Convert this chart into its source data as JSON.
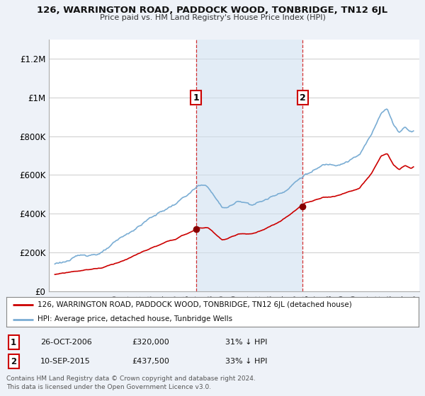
{
  "title": "126, WARRINGTON ROAD, PADDOCK WOOD, TONBRIDGE, TN12 6JL",
  "subtitle": "Price paid vs. HM Land Registry's House Price Index (HPI)",
  "hpi_color": "#7aadd4",
  "price_color": "#cc0000",
  "background_color": "#eef2f8",
  "plot_bg_color": "#ffffff",
  "ylim": [
    0,
    1300000
  ],
  "yticks": [
    0,
    200000,
    400000,
    600000,
    800000,
    1000000,
    1200000
  ],
  "ytick_labels": [
    "£0",
    "£200K",
    "£400K",
    "£600K",
    "£800K",
    "£1M",
    "£1.2M"
  ],
  "sale1_date": 2006.82,
  "sale1_price": 320000,
  "sale1_label": "1",
  "sale2_date": 2015.72,
  "sale2_price": 437500,
  "sale2_label": "2",
  "legend_line1": "126, WARRINGTON ROAD, PADDOCK WOOD, TONBRIDGE, TN12 6JL (detached house)",
  "legend_line2": "HPI: Average price, detached house, Tunbridge Wells",
  "table_row1": [
    "1",
    "26-OCT-2006",
    "£320,000",
    "31% ↓ HPI"
  ],
  "table_row2": [
    "2",
    "10-SEP-2015",
    "£437,500",
    "33% ↓ HPI"
  ],
  "footnote": "Contains HM Land Registry data © Crown copyright and database right 2024.\nThis data is licensed under the Open Government Licence v3.0.",
  "xmin": 1994.5,
  "xmax": 2025.5
}
